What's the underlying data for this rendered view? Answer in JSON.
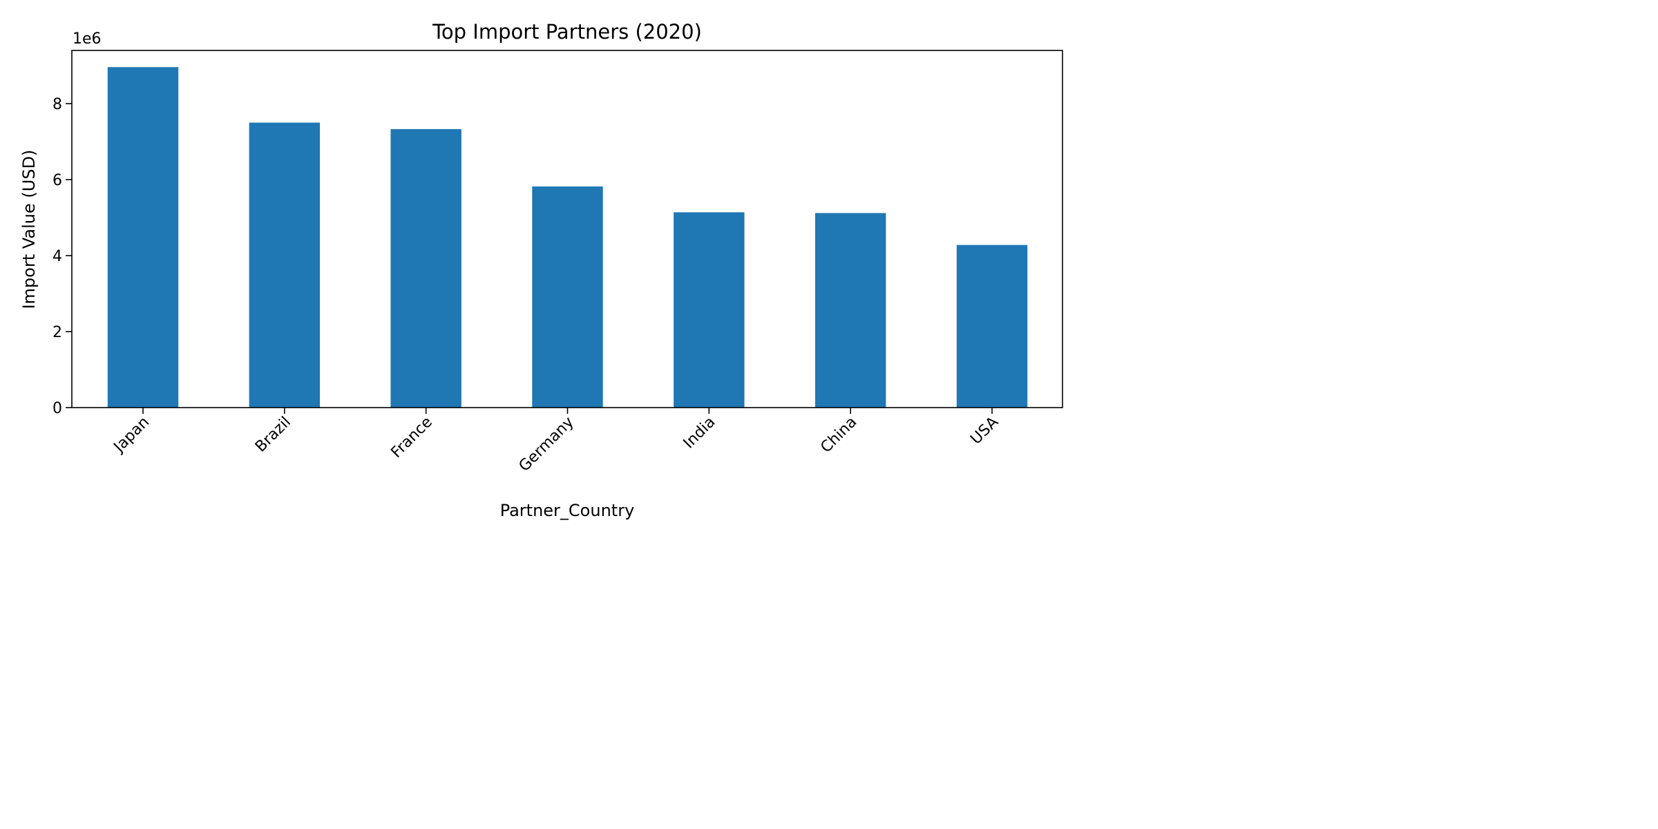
{
  "chart_data": {
    "type": "bar",
    "title": "Top Import Partners (2020)",
    "xlabel": "Partner_Country",
    "ylabel": "Import Value (USD)",
    "y_scale_label": "1e6",
    "y_multiplier": 1000000,
    "categories": [
      "Japan",
      "Brazil",
      "France",
      "Germany",
      "India",
      "China",
      "USA"
    ],
    "values": [
      8960000,
      7500000,
      7330000,
      5820000,
      5140000,
      5120000,
      4280000
    ],
    "ylim": [
      0,
      9400000
    ],
    "yticks": [
      0,
      2,
      4,
      6,
      8
    ],
    "grid": false,
    "legend": "none",
    "bar_color": "#1f77b4"
  }
}
